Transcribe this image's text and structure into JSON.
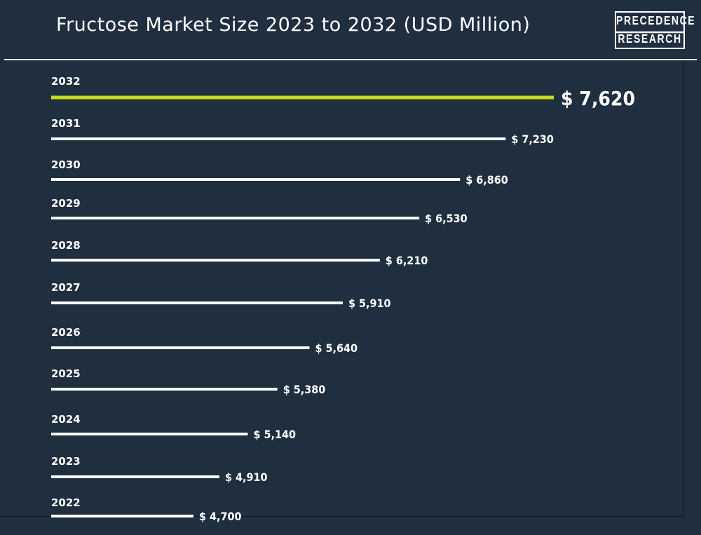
{
  "chart_data": {
    "type": "bar",
    "orientation": "horizontal",
    "title": "Fructose Market Size 2023 to 2032 (USD Million)",
    "categories": [
      "2032",
      "2031",
      "2030",
      "2029",
      "2028",
      "2027",
      "2026",
      "2025",
      "2024",
      "2023",
      "2022"
    ],
    "values": [
      7620,
      7230,
      6860,
      6530,
      6210,
      5910,
      5640,
      5380,
      5140,
      4910,
      4700
    ],
    "value_labels": [
      "$ 7,620",
      "$ 7,230",
      "$ 6,860",
      "$ 6,530",
      "$ 6,210",
      "$ 5,910",
      "$ 5,640",
      "$ 5,380",
      "$ 5,140",
      "$ 4,910",
      "$ 4,700"
    ],
    "highlight_category": "2032",
    "colors": {
      "background": "#1f2f40",
      "bar": "#ffffff",
      "highlight": "#c6dd1a"
    },
    "grid": false
  },
  "logo": {
    "line1": "PRECEDENCE",
    "line2": "RESEARCH"
  }
}
